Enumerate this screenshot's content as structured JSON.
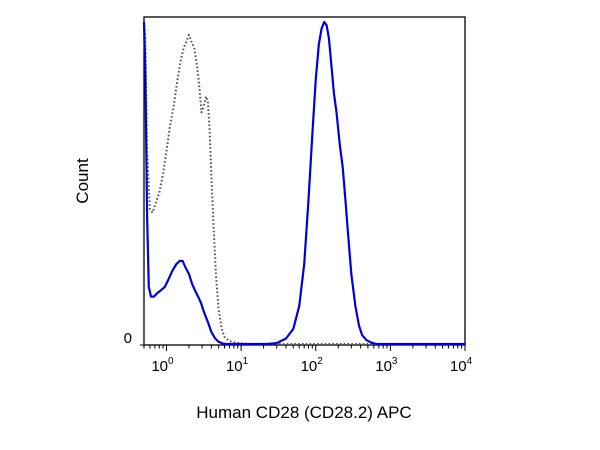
{
  "chart_data": {
    "type": "line",
    "title": "",
    "xlabel": "Human CD28 (CD28.2) APC",
    "ylabel": "Count",
    "x_scale": "log",
    "xlim": [
      0.5,
      10000
    ],
    "ylim": [
      0,
      100
    ],
    "x_ticks": [
      {
        "value": 1,
        "base": "10",
        "exp": "0"
      },
      {
        "value": 10,
        "base": "10",
        "exp": "1"
      },
      {
        "value": 100,
        "base": "10",
        "exp": "2"
      },
      {
        "value": 1000,
        "base": "10",
        "exp": "3"
      },
      {
        "value": 10000,
        "base": "10",
        "exp": "4"
      }
    ],
    "y_ticks": [
      {
        "value": 0,
        "label": "0"
      }
    ],
    "grid": false,
    "legend": "none",
    "series": [
      {
        "style": "dotted",
        "color": "#555555",
        "x": [
          0.5,
          0.52,
          0.55,
          0.6,
          0.65,
          0.72,
          0.8,
          0.9,
          1.0,
          1.1,
          1.25,
          1.4,
          1.55,
          1.7,
          1.85,
          2.0,
          2.15,
          2.35,
          2.55,
          2.75,
          2.95,
          3.15,
          3.4,
          3.6,
          3.8,
          4.0,
          4.3,
          4.6,
          5.0,
          5.5,
          6.0,
          6.8,
          7.5,
          8.5,
          10,
          12,
          15,
          20,
          30,
          50,
          100,
          300,
          1000,
          10000
        ],
        "y": [
          100,
          95,
          60,
          42,
          41,
          44,
          47,
          53,
          60,
          67,
          74,
          82,
          88,
          92,
          94,
          96,
          94,
          92,
          87,
          80,
          72,
          74,
          77,
          75,
          66,
          52,
          36,
          22,
          11,
          5,
          2.5,
          1.4,
          1.0,
          0.7,
          0.5,
          0.3,
          0.25,
          0.2,
          0.15,
          0.1,
          0.1,
          0.1,
          0.1,
          0.1
        ]
      },
      {
        "style": "solid",
        "color": "#0000dd",
        "x": [
          0.5,
          0.52,
          0.55,
          0.58,
          0.62,
          0.68,
          0.75,
          0.85,
          0.95,
          1.05,
          1.2,
          1.35,
          1.5,
          1.65,
          1.8,
          2.0,
          2.2,
          2.4,
          2.65,
          2.9,
          3.2,
          3.6,
          4.0,
          4.5,
          5.0,
          5.6,
          6.2,
          7.0,
          8.0,
          10,
          13,
          17,
          22,
          30,
          40,
          50,
          60,
          70,
          80,
          90,
          100,
          110,
          120,
          130,
          140,
          150,
          160,
          175,
          190,
          210,
          230,
          250,
          270,
          300,
          340,
          380,
          420,
          480,
          560,
          650,
          800,
          1000,
          1500,
          10000
        ],
        "y": [
          100,
          85,
          40,
          18,
          15,
          15,
          16,
          17,
          18,
          20,
          23,
          25,
          26,
          26,
          24,
          22,
          19,
          17,
          15,
          13,
          10,
          7,
          4,
          2,
          1,
          0.5,
          0.3,
          0.2,
          0.1,
          0.1,
          0.1,
          0.2,
          0.3,
          0.6,
          2,
          5,
          12,
          25,
          45,
          65,
          82,
          93,
          98,
          100,
          99,
          95,
          88,
          78,
          72,
          62,
          55,
          45,
          35,
          22,
          12,
          6,
          3,
          1.5,
          0.7,
          0.3,
          0.1,
          0.1,
          0.1,
          0.1
        ]
      }
    ]
  }
}
